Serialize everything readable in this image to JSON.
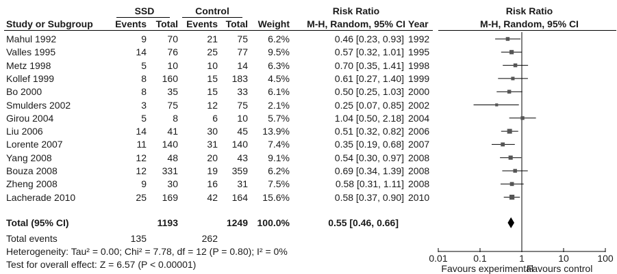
{
  "headers": {
    "group1": "SSD",
    "group2": "Control",
    "rr_title": "Risk Ratio",
    "study": "Study or Subgroup",
    "events1": "Events",
    "total1": "Total",
    "events2": "Events",
    "total2": "Total",
    "weight": "Weight",
    "rr_method": "M-H, Random, 95% CI",
    "year": "Year",
    "plot_title": "Risk Ratio",
    "plot_method": "M-H, Random, 95% CI"
  },
  "total_row": {
    "label": "Total (95% CI)",
    "total1": "1193",
    "total2": "1249",
    "weight": "100.0%",
    "rr": "0.55 [0.46, 0.66]"
  },
  "total_events": {
    "label": "Total events",
    "events1": "135",
    "events2": "262"
  },
  "footer": {
    "heterogeneity": "Heterogeneity: Tau² = 0.00; Chi² = 7.78, df = 12 (P = 0.80); I² = 0%",
    "overall": "Test for overall effect: Z = 6.57 (P < 0.00001)"
  },
  "chart_data": {
    "type": "forest",
    "scale": "log",
    "xlim": [
      0.01,
      100
    ],
    "xticks": [
      {
        "value": 0.01,
        "label": "0.01"
      },
      {
        "value": 0.1,
        "label": "0.1"
      },
      {
        "value": 1,
        "label": "1"
      },
      {
        "value": 10,
        "label": "10"
      },
      {
        "value": 100,
        "label": "100"
      }
    ],
    "favours_left": "Favours experimental",
    "favours_right": "Favours control",
    "studies": [
      {
        "name": "Mahul 1992",
        "e1": "9",
        "t1": "70",
        "e2": "21",
        "t2": "75",
        "weight": "6.2%",
        "ci": "0.46 [0.23, 0.93]",
        "year": "1992",
        "rr": 0.46,
        "lo": 0.23,
        "hi": 0.93,
        "w": 6.2
      },
      {
        "name": "Valles 1995",
        "e1": "14",
        "t1": "76",
        "e2": "25",
        "t2": "77",
        "weight": "9.5%",
        "ci": "0.57 [0.32, 1.01]",
        "year": "1995",
        "rr": 0.57,
        "lo": 0.32,
        "hi": 1.01,
        "w": 9.5
      },
      {
        "name": "Metz 1998",
        "e1": "5",
        "t1": "10",
        "e2": "10",
        "t2": "14",
        "weight": "6.3%",
        "ci": "0.70 [0.35, 1.41]",
        "year": "1998",
        "rr": 0.7,
        "lo": 0.35,
        "hi": 1.41,
        "w": 6.3
      },
      {
        "name": "Kollef 1999",
        "e1": "8",
        "t1": "160",
        "e2": "15",
        "t2": "183",
        "weight": "4.5%",
        "ci": "0.61 [0.27, 1.40]",
        "year": "1999",
        "rr": 0.61,
        "lo": 0.27,
        "hi": 1.4,
        "w": 4.5
      },
      {
        "name": "Bo 2000",
        "e1": "8",
        "t1": "35",
        "e2": "15",
        "t2": "33",
        "weight": "6.1%",
        "ci": "0.50 [0.25, 1.03]",
        "year": "2000",
        "rr": 0.5,
        "lo": 0.25,
        "hi": 1.03,
        "w": 6.1
      },
      {
        "name": "Smulders 2002",
        "e1": "3",
        "t1": "75",
        "e2": "12",
        "t2": "75",
        "weight": "2.1%",
        "ci": "0.25 [0.07, 0.85]",
        "year": "2002",
        "rr": 0.25,
        "lo": 0.07,
        "hi": 0.85,
        "w": 2.1
      },
      {
        "name": "Girou 2004",
        "e1": "5",
        "t1": "8",
        "e2": "6",
        "t2": "10",
        "weight": "5.7%",
        "ci": "1.04 [0.50, 2.18]",
        "year": "2004",
        "rr": 1.04,
        "lo": 0.5,
        "hi": 2.18,
        "w": 5.7
      },
      {
        "name": "Liu 2006",
        "e1": "14",
        "t1": "41",
        "e2": "30",
        "t2": "45",
        "weight": "13.9%",
        "ci": "0.51 [0.32, 0.82]",
        "year": "2006",
        "rr": 0.51,
        "lo": 0.32,
        "hi": 0.82,
        "w": 13.9
      },
      {
        "name": "Lorente 2007",
        "e1": "11",
        "t1": "140",
        "e2": "31",
        "t2": "140",
        "weight": "7.4%",
        "ci": "0.35 [0.19, 0.68]",
        "year": "2007",
        "rr": 0.35,
        "lo": 0.19,
        "hi": 0.68,
        "w": 7.4
      },
      {
        "name": "Yang 2008",
        "e1": "12",
        "t1": "48",
        "e2": "20",
        "t2": "43",
        "weight": "9.1%",
        "ci": "0.54 [0.30, 0.97]",
        "year": "2008",
        "rr": 0.54,
        "lo": 0.3,
        "hi": 0.97,
        "w": 9.1
      },
      {
        "name": "Bouza 2008",
        "e1": "12",
        "t1": "331",
        "e2": "19",
        "t2": "359",
        "weight": "6.2%",
        "ci": "0.69 [0.34, 1.39]",
        "year": "2008",
        "rr": 0.69,
        "lo": 0.34,
        "hi": 1.39,
        "w": 6.2
      },
      {
        "name": "Zheng 2008",
        "e1": "9",
        "t1": "30",
        "e2": "16",
        "t2": "31",
        "weight": "7.5%",
        "ci": "0.58 [0.31, 1.11]",
        "year": "2008",
        "rr": 0.58,
        "lo": 0.31,
        "hi": 1.11,
        "w": 7.5
      },
      {
        "name": "Lacherade 2010",
        "e1": "25",
        "t1": "169",
        "e2": "42",
        "t2": "164",
        "weight": "15.6%",
        "ci": "0.58 [0.37, 0.90]",
        "year": "2010",
        "rr": 0.58,
        "lo": 0.37,
        "hi": 0.9,
        "w": 15.6
      }
    ],
    "pooled": {
      "rr": 0.55,
      "lo": 0.46,
      "hi": 0.66
    }
  }
}
